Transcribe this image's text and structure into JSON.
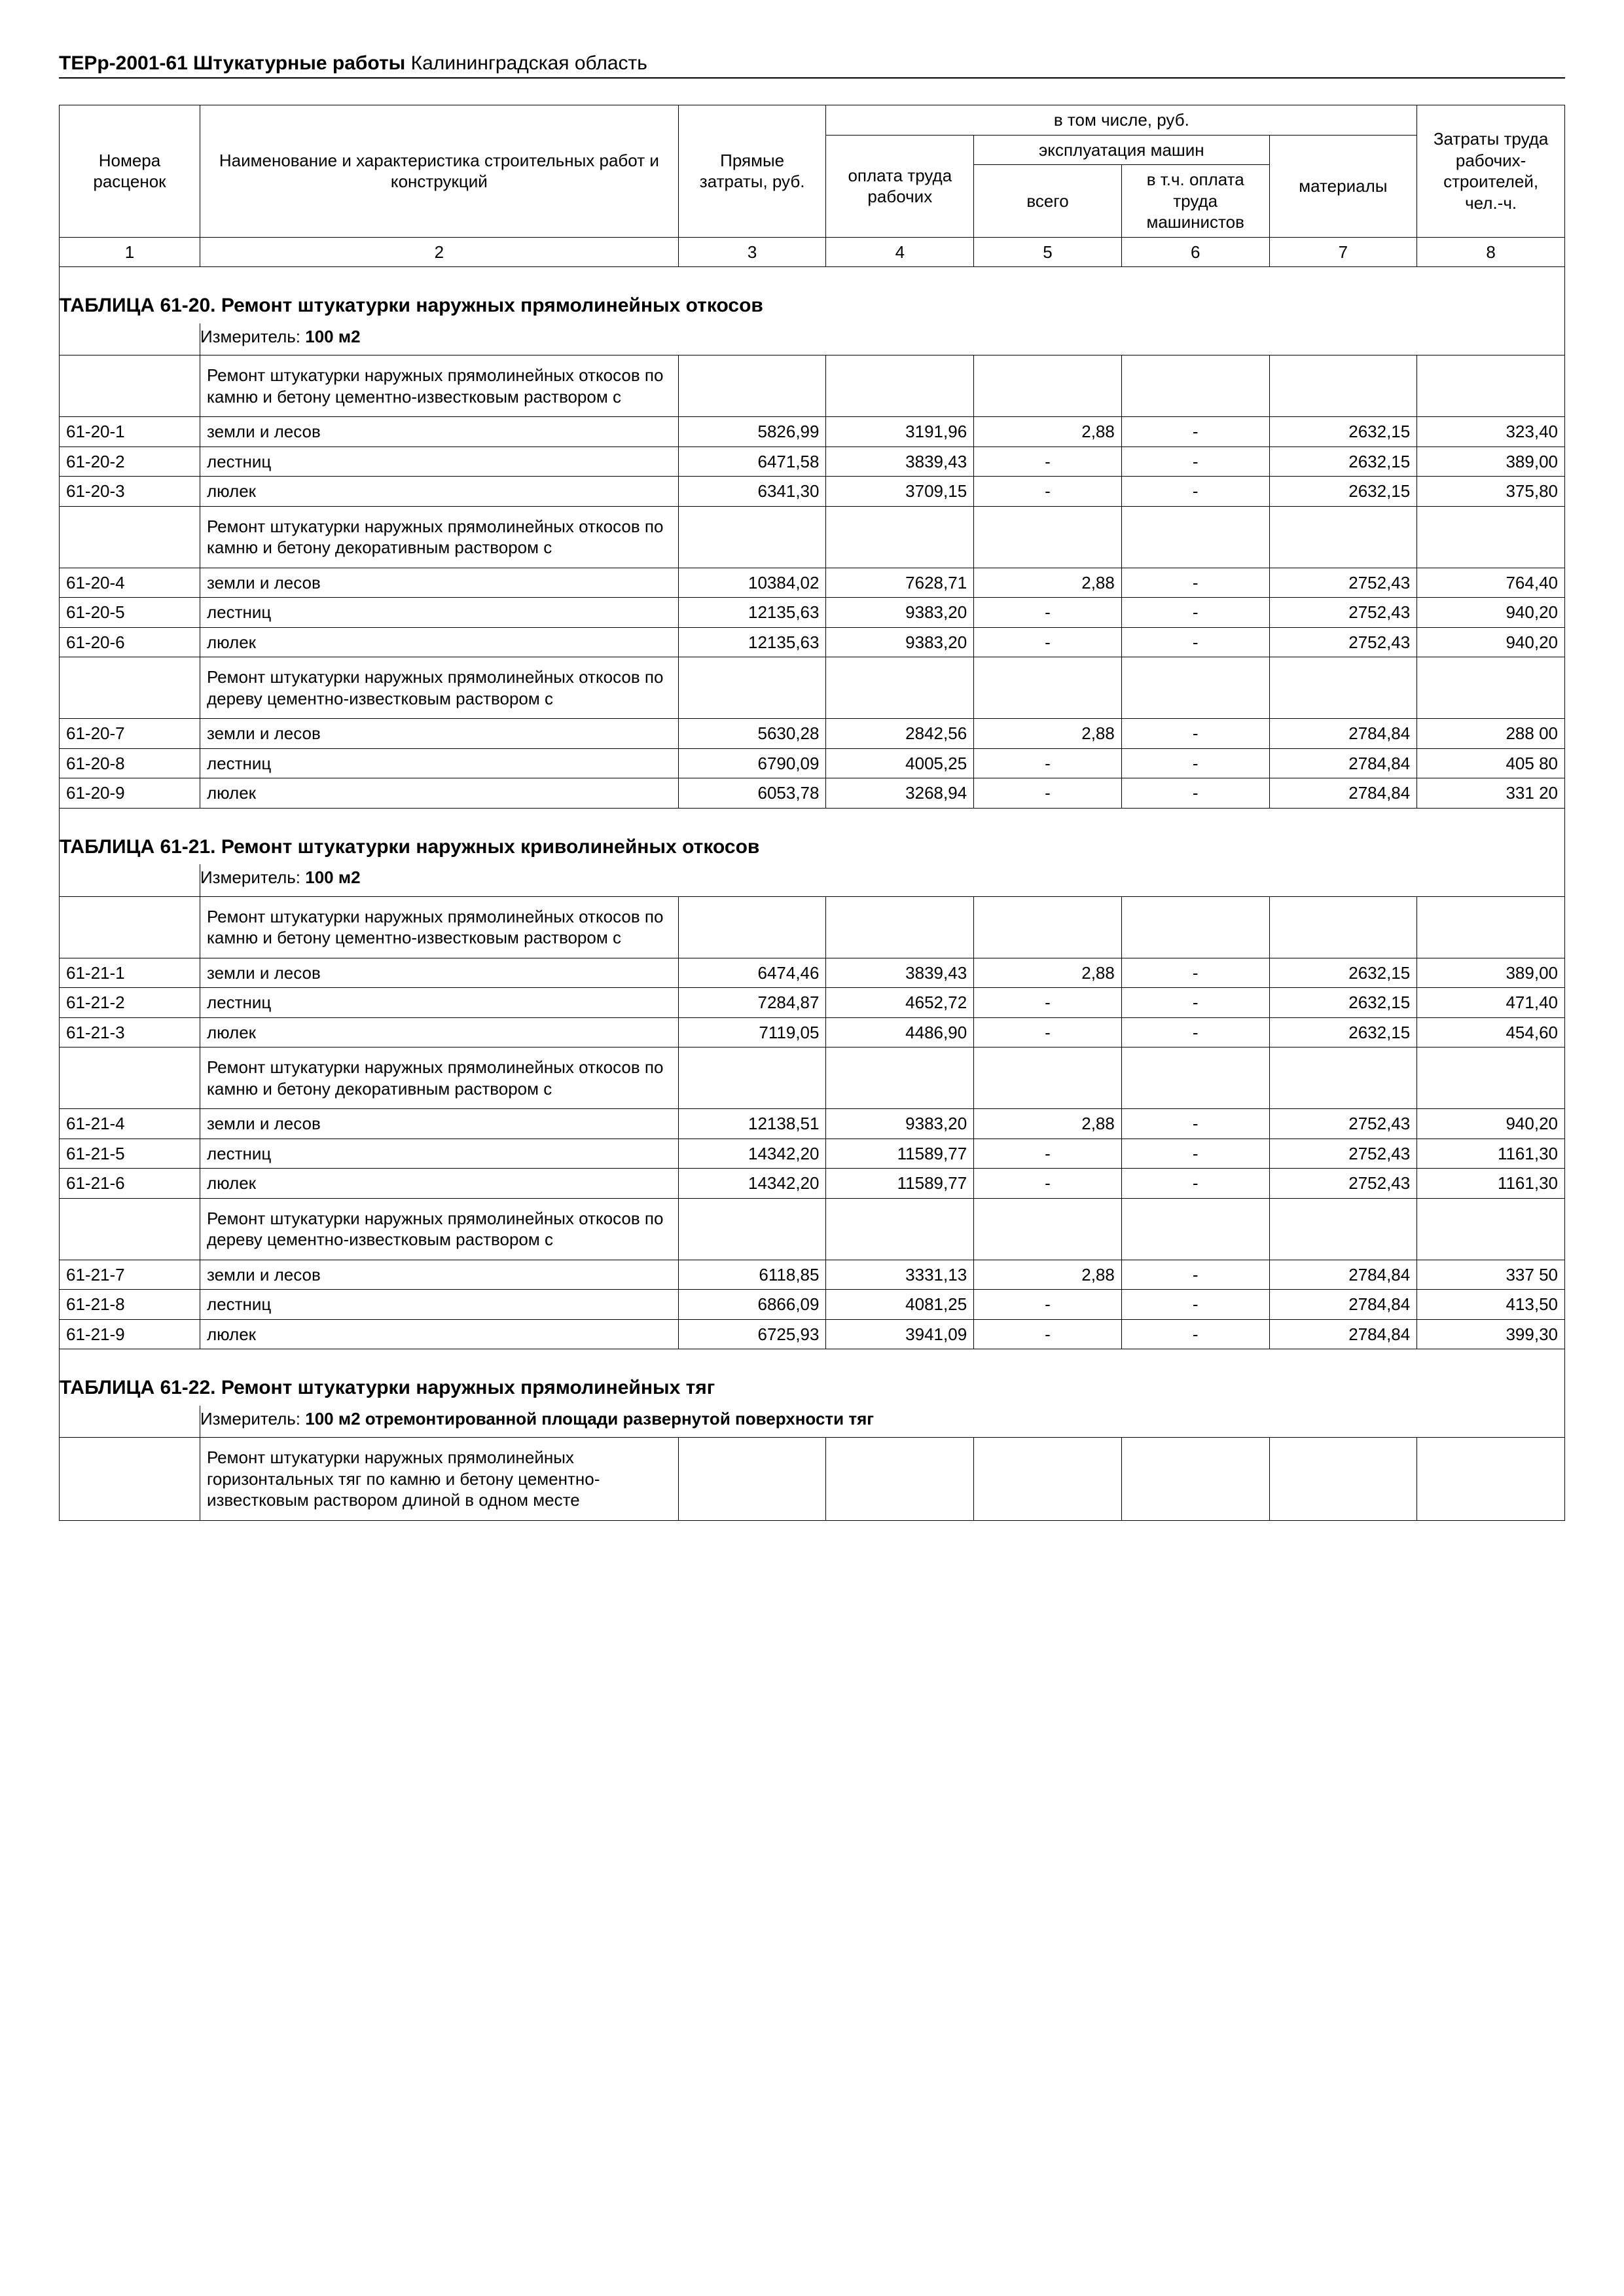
{
  "header": {
    "title_bold": "ТЕРр-2001-61 Штукатурные работы",
    "title_rest": " Калининградская область"
  },
  "columns": {
    "c1": "Номера расценок",
    "c2": "Наименование и характеристика строительных работ и конструкций",
    "c3": "Прямые затраты, руб.",
    "group": "в том числе, руб.",
    "c4": "оплата труда рабочих",
    "machines": "эксплуатация машин",
    "c5": "всего",
    "c6": "в т.ч. оплата труда машинистов",
    "c7": "материалы",
    "c8": "Затраты труда рабочих-строителей, чел.-ч.",
    "n1": "1",
    "n2": "2",
    "n3": "3",
    "n4": "4",
    "n5": "5",
    "n6": "6",
    "n7": "7",
    "n8": "8"
  },
  "sections": [
    {
      "title": "ТАБЛИЦА  61-20.  Ремонт штукатурки наружных прямолинейных откосов",
      "measure_label": "Измеритель: ",
      "measure_value": "100 м2",
      "groups": [
        {
          "desc": "Ремонт штукатурки наружных прямолинейных откосов по камню и бетону цементно-известковым раствором с",
          "rows": [
            {
              "code": "61-20-1",
              "name": "земли и лесов",
              "c3": "5826,99",
              "c4": "3191,96",
              "c5": "2,88",
              "c6": "-",
              "c7": "2632,15",
              "c8": "323,40"
            },
            {
              "code": "61-20-2",
              "name": "лестниц",
              "c3": "6471,58",
              "c4": "3839,43",
              "c5": "-",
              "c6": "-",
              "c7": "2632,15",
              "c8": "389,00"
            },
            {
              "code": "61-20-3",
              "name": "люлек",
              "c3": "6341,30",
              "c4": "3709,15",
              "c5": "-",
              "c6": "-",
              "c7": "2632,15",
              "c8": "375,80"
            }
          ]
        },
        {
          "desc": "Ремонт штукатурки наружных прямолинейных откосов по камню и бетону декоративным раствором с",
          "rows": [
            {
              "code": "61-20-4",
              "name": "земли и лесов",
              "c3": "10384,02",
              "c4": "7628,71",
              "c5": "2,88",
              "c6": "-",
              "c7": "2752,43",
              "c8": "764,40"
            },
            {
              "code": "61-20-5",
              "name": "лестниц",
              "c3": "12135,63",
              "c4": "9383,20",
              "c5": "-",
              "c6": "-",
              "c7": "2752,43",
              "c8": "940,20"
            },
            {
              "code": "61-20-6",
              "name": "люлек",
              "c3": "12135,63",
              "c4": "9383,20",
              "c5": "-",
              "c6": "-",
              "c7": "2752,43",
              "c8": "940,20"
            }
          ]
        },
        {
          "desc": "Ремонт штукатурки наружных прямолинейных откосов по дереву цементно-известковым раствором с",
          "rows": [
            {
              "code": "61-20-7",
              "name": "земли и лесов",
              "c3": "5630,28",
              "c4": "2842,56",
              "c5": "2,88",
              "c6": "-",
              "c7": "2784,84",
              "c8": "288 00"
            },
            {
              "code": "61-20-8",
              "name": "лестниц",
              "c3": "6790,09",
              "c4": "4005,25",
              "c5": "-",
              "c6": "-",
              "c7": "2784,84",
              "c8": "405 80"
            },
            {
              "code": "61-20-9",
              "name": "люлек",
              "c3": "6053,78",
              "c4": "3268,94",
              "c5": "-",
              "c6": "-",
              "c7": "2784,84",
              "c8": "331 20"
            }
          ]
        }
      ]
    },
    {
      "title": "ТАБЛИЦА  61-21.  Ремонт штукатурки наружных криволинейных откосов",
      "measure_label": "Измеритель: ",
      "measure_value": "100 м2",
      "groups": [
        {
          "desc": "Ремонт штукатурки наружных прямолинейных откосов по камню и бетону цементно-известковым раствором с",
          "rows": [
            {
              "code": "61-21-1",
              "name": "земли и лесов",
              "c3": "6474,46",
              "c4": "3839,43",
              "c5": "2,88",
              "c6": "-",
              "c7": "2632,15",
              "c8": "389,00"
            },
            {
              "code": "61-21-2",
              "name": "лестниц",
              "c3": "7284,87",
              "c4": "4652,72",
              "c5": "-",
              "c6": "-",
              "c7": "2632,15",
              "c8": "471,40"
            },
            {
              "code": "61-21-3",
              "name": "люлек",
              "c3": "7119,05",
              "c4": "4486,90",
              "c5": "-",
              "c6": "-",
              "c7": "2632,15",
              "c8": "454,60"
            }
          ]
        },
        {
          "desc": "Ремонт штукатурки наружных прямолинейных откосов по камню и бетону декоративным раствором с",
          "rows": [
            {
              "code": "61-21-4",
              "name": "земли и лесов",
              "c3": "12138,51",
              "c4": "9383,20",
              "c5": "2,88",
              "c6": "-",
              "c7": "2752,43",
              "c8": "940,20"
            },
            {
              "code": "61-21-5",
              "name": "лестниц",
              "c3": "14342,20",
              "c4": "11589,77",
              "c5": "-",
              "c6": "-",
              "c7": "2752,43",
              "c8": "1161,30"
            },
            {
              "code": "61-21-6",
              "name": "люлек",
              "c3": "14342,20",
              "c4": "11589,77",
              "c5": "-",
              "c6": "-",
              "c7": "2752,43",
              "c8": "1161,30"
            }
          ]
        },
        {
          "desc": "Ремонт штукатурки наружных прямолинейных откосов по дереву цементно-известковым раствором с",
          "rows": [
            {
              "code": "61-21-7",
              "name": "земли и лесов",
              "c3": "6118,85",
              "c4": "3331,13",
              "c5": "2,88",
              "c6": "-",
              "c7": "2784,84",
              "c8": "337 50"
            },
            {
              "code": "61-21-8",
              "name": "лестниц",
              "c3": "6866,09",
              "c4": "4081,25",
              "c5": "-",
              "c6": "-",
              "c7": "2784,84",
              "c8": "413,50"
            },
            {
              "code": "61-21-9",
              "name": "люлек",
              "c3": "6725,93",
              "c4": "3941,09",
              "c5": "-",
              "c6": "-",
              "c7": "2784,84",
              "c8": "399,30"
            }
          ]
        }
      ]
    },
    {
      "title": "ТАБЛИЦА  61-22.  Ремонт штукатурки наружных прямолинейных тяг",
      "measure_label": "Измеритель: ",
      "measure_value": "100 м2 отремонтированной площади развернутой поверхности тяг",
      "groups": [
        {
          "desc": "Ремонт штукатурки наружных прямолинейных горизонтальных тяг по камню и бетону цементно-известковым раствором длиной в одном месте",
          "rows": []
        }
      ]
    }
  ]
}
